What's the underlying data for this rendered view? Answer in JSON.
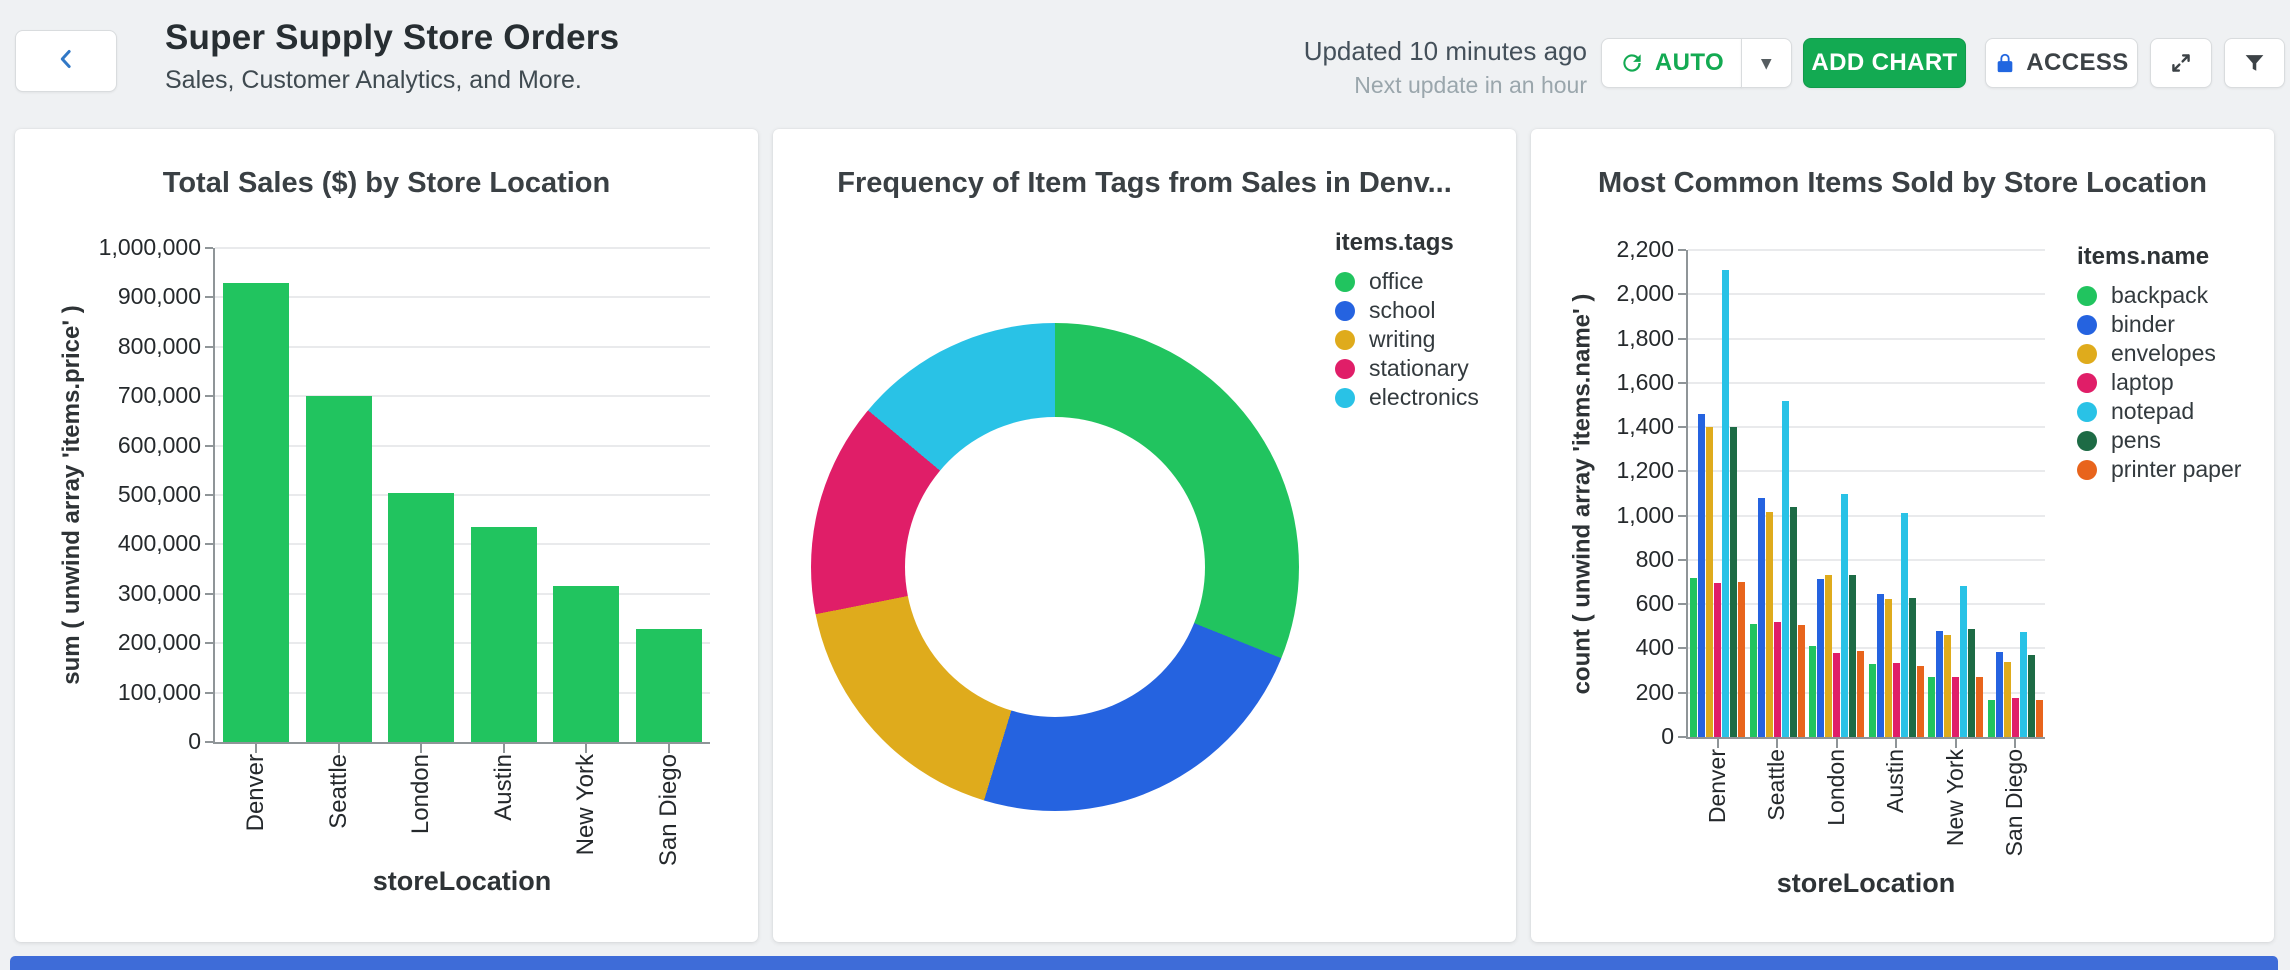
{
  "page": {
    "background": "#eff1f3",
    "bottom_strip_color": "#3e6cd8"
  },
  "header": {
    "title": "Super Supply Store Orders",
    "subtitle": "Sales, Customer Analytics, and More.",
    "updated": "Updated 10 minutes ago",
    "next_update": "Next update in an hour",
    "auto_button": "AUTO",
    "add_chart_button": "ADD CHART",
    "access_button": "ACCESS",
    "brand_green": "#13aa52",
    "icon_blue": "#2166e0",
    "icons": {
      "back": "chevron-left",
      "refresh": "circular-refresh-arrows",
      "caret": "▾",
      "lock": "padlock",
      "expand": "diagonal-expand-arrows",
      "filter": "funnel"
    }
  },
  "chart_data": [
    {
      "type": "bar",
      "title": "Total Sales ($) by Store Location",
      "xlabel": "storeLocation",
      "ylabel": "sum ( unwind array 'items.price' )",
      "categories": [
        "Denver",
        "Seattle",
        "London",
        "Austin",
        "New York",
        "San Diego"
      ],
      "values": [
        930000,
        700000,
        505000,
        435000,
        315000,
        228000
      ],
      "ylim": [
        0,
        1000000
      ],
      "ytick_step": 100000,
      "bar_color": "#21c45f",
      "grid": true,
      "legend_position": "none"
    },
    {
      "type": "pie",
      "title": "Frequency of Item Tags from Sales in Denv...",
      "legend_title": "items.tags",
      "legend_position": "top-right",
      "labels": [
        "office",
        "school",
        "writing",
        "stationary",
        "electronics"
      ],
      "values_pct": [
        31.1,
        23.6,
        17.2,
        14.2,
        13.9
      ],
      "colors": [
        "#21c45f",
        "#2563e0",
        "#dfab1c",
        "#e01e68",
        "#29c2e6"
      ],
      "donut_hole_ratio": 0.61
    },
    {
      "type": "bar",
      "subtype": "grouped",
      "title": "Most Common Items Sold by Store Location",
      "xlabel": "storeLocation",
      "ylabel": "count ( unwind array 'items.name' )",
      "legend_title": "items.name",
      "legend_position": "right",
      "categories": [
        "Denver",
        "Seattle",
        "London",
        "Austin",
        "New York",
        "San Diego"
      ],
      "series": [
        {
          "name": "backpack",
          "color": "#21c45f",
          "values": [
            720,
            510,
            410,
            330,
            270,
            165
          ]
        },
        {
          "name": "binder",
          "color": "#2563e0",
          "values": [
            1460,
            1080,
            715,
            645,
            480,
            385
          ]
        },
        {
          "name": "envelopes",
          "color": "#dfab1c",
          "values": [
            1400,
            1015,
            730,
            625,
            460,
            340
          ]
        },
        {
          "name": "laptop",
          "color": "#e01e68",
          "values": [
            695,
            520,
            380,
            335,
            270,
            175
          ]
        },
        {
          "name": "notepad",
          "color": "#29c2e6",
          "values": [
            2110,
            1520,
            1100,
            1010,
            680,
            475
          ]
        },
        {
          "name": "pens",
          "color": "#1d6b45",
          "values": [
            1400,
            1040,
            730,
            630,
            490,
            370
          ]
        },
        {
          "name": "printer paper",
          "color": "#e8641c",
          "values": [
            700,
            505,
            390,
            320,
            270,
            165
          ]
        }
      ],
      "ylim": [
        0,
        2200
      ],
      "ytick_step": 200,
      "grid": true
    }
  ]
}
